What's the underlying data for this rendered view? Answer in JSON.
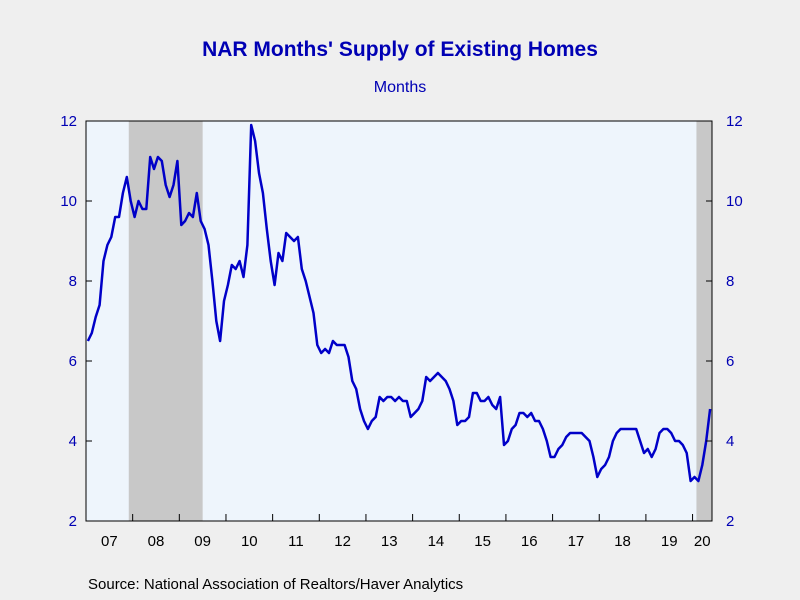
{
  "chart_data": {
    "type": "line",
    "title": "NAR Months' Supply of Existing Homes",
    "subtitle": "Months",
    "source": "Source:  National Association of Realtors/Haver Analytics",
    "ylim": [
      2,
      12
    ],
    "yticks": [
      2,
      4,
      6,
      8,
      10,
      12
    ],
    "x_range": [
      "2007-01",
      "2020-05"
    ],
    "x_tick_labels": [
      "07",
      "08",
      "09",
      "10",
      "11",
      "12",
      "13",
      "14",
      "15",
      "16",
      "17",
      "18",
      "19",
      "20"
    ],
    "recessions": [
      {
        "start": "2007-12",
        "end": "2009-06"
      },
      {
        "start": "2020-02",
        "end": "2020-05"
      }
    ],
    "grid": false,
    "colors": {
      "line": "#0000c8",
      "plot_bg": "#eef5fc",
      "recession": "#c8c8c8",
      "text": "#0000b4"
    },
    "series": [
      {
        "start": "2007-01",
        "values": [
          6.5,
          6.7,
          7.1,
          7.4,
          8.5,
          8.9,
          9.1,
          9.6,
          9.6,
          10.2,
          10.6,
          10.0,
          9.6,
          10.0,
          9.8,
          9.8,
          11.1,
          10.8,
          11.1,
          11.0,
          10.4,
          10.1,
          10.4,
          11.0,
          9.4,
          9.5,
          9.7,
          9.6,
          10.2,
          9.5,
          9.3,
          8.9,
          8.0,
          7.0,
          6.5,
          7.5,
          7.9,
          8.4,
          8.3,
          8.5,
          8.1,
          8.9,
          11.9,
          11.5,
          10.7,
          10.2,
          9.3,
          8.5,
          7.9,
          8.7,
          8.5,
          9.2,
          9.1,
          9.0,
          9.1,
          8.3,
          8.0,
          7.6,
          7.2,
          6.4,
          6.2,
          6.3,
          6.2,
          6.5,
          6.4,
          6.4,
          6.4,
          6.1,
          5.5,
          5.3,
          4.8,
          4.5,
          4.3,
          4.5,
          4.6,
          5.1,
          5.0,
          5.1,
          5.1,
          5.0,
          5.1,
          5.0,
          5.0,
          4.6,
          4.7,
          4.8,
          5.0,
          5.6,
          5.5,
          5.6,
          5.7,
          5.6,
          5.5,
          5.3,
          5.0,
          4.4,
          4.5,
          4.5,
          4.6,
          5.2,
          5.2,
          5.0,
          5.0,
          5.1,
          4.9,
          4.8,
          5.1,
          3.9,
          4.0,
          4.3,
          4.4,
          4.7,
          4.7,
          4.6,
          4.7,
          4.5,
          4.5,
          4.3,
          4.0,
          3.6,
          3.6,
          3.8,
          3.9,
          4.1,
          4.2,
          4.2,
          4.2,
          4.2,
          4.1,
          4.0,
          3.6,
          3.1,
          3.3,
          3.4,
          3.6,
          4.0,
          4.2,
          4.3,
          4.3,
          4.3,
          4.3,
          4.3,
          4.0,
          3.7,
          3.8,
          3.6,
          3.8,
          4.2,
          4.3,
          4.3,
          4.2,
          4.0,
          4.0,
          3.9,
          3.7,
          3.0,
          3.1,
          3.0,
          3.4,
          4.0,
          4.8
        ]
      }
    ]
  }
}
